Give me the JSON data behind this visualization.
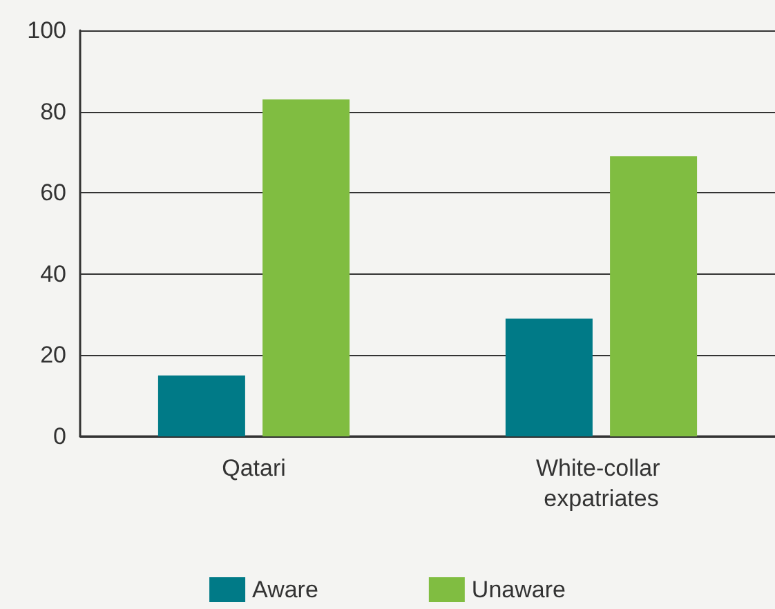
{
  "chart_data": {
    "type": "bar",
    "categories": [
      "Qatari",
      "White-collar expatriates"
    ],
    "series": [
      {
        "name": "Aware",
        "color": "#007a87",
        "values": [
          15,
          29
        ]
      },
      {
        "name": "Unaware",
        "color": "#80bd41",
        "values": [
          83,
          69
        ]
      }
    ],
    "ylim": [
      0,
      100
    ],
    "yticks": [
      0,
      20,
      40,
      60,
      80,
      100
    ],
    "grid": "y",
    "legend": "bottom"
  }
}
